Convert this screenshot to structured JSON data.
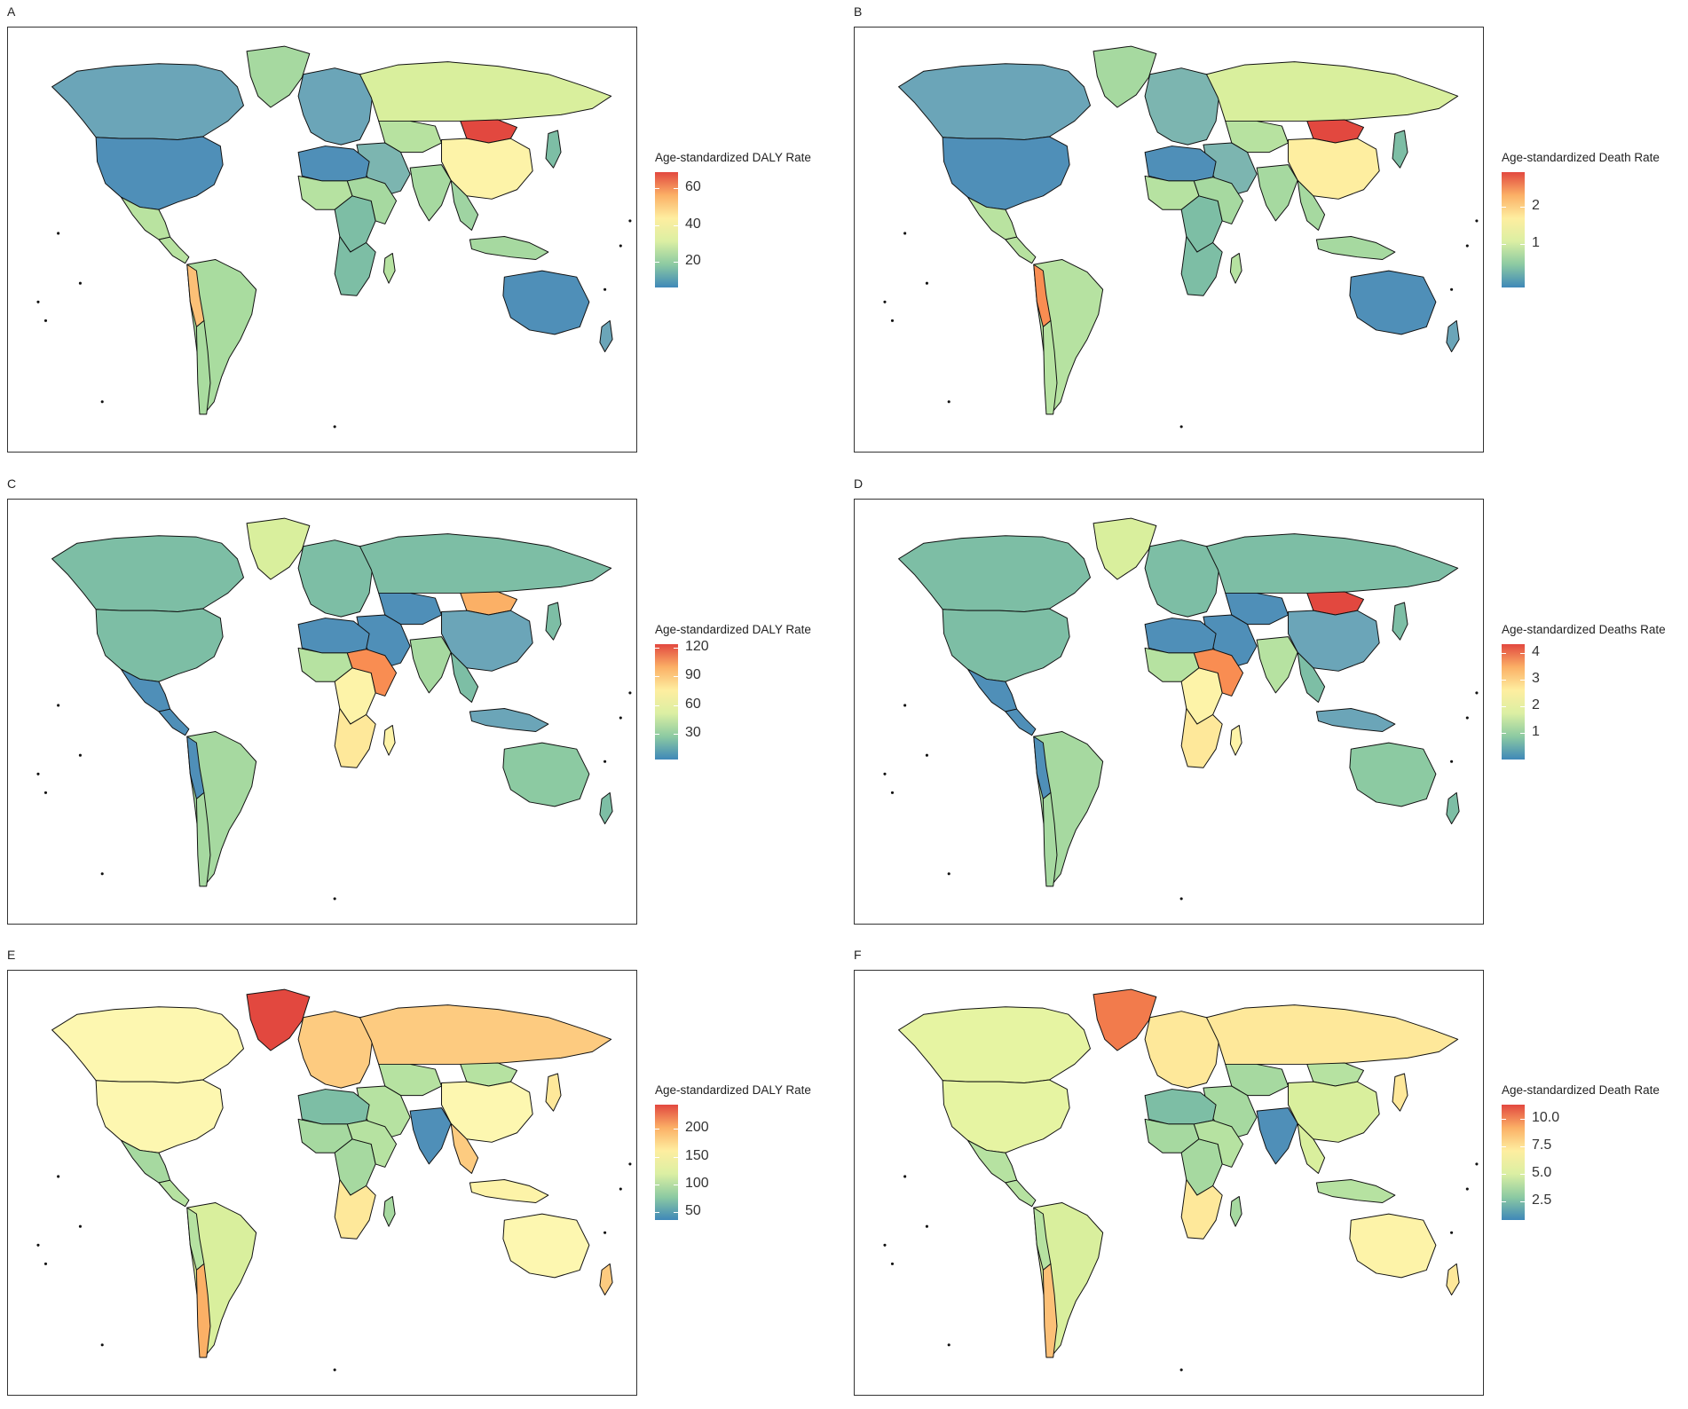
{
  "colors": {
    "scale": [
      "#3f88b8",
      "#8ccaa2",
      "#dbefa3",
      "#feeea0",
      "#fbb066",
      "#e2483f"
    ]
  },
  "panels": [
    {
      "label": "A",
      "legend_title": "Age-standardized DALY Rate",
      "ticks": [
        "60",
        "40",
        "20"
      ],
      "tick_fracs": [
        0.14,
        0.46,
        0.78
      ],
      "palette": {
        "northamerica": "#4f8fb8",
        "canada": "#6ba5b8",
        "greenland": "#a6d9a0",
        "mexico": "#b9e3a0",
        "centralam": "#b7e2a0",
        "southamerica": "#a9dc9f",
        "andes": "#fcc077",
        "chile": "#a9dc9f",
        "russia": "#d9ef9d",
        "mongolia": "#e2483f",
        "china": "#fdf3a8",
        "india": "#a6d9a0",
        "europe": "#6ba5b8",
        "middleeast": "#7cb5b0",
        "northafrica": "#4f8fb8",
        "westafrica": "#b6e2a1",
        "centralafrica": "#7dbea5",
        "eastafrica": "#a6d9a0",
        "southafrica": "#7dbea5",
        "madagascar": "#b6e2a1",
        "seasia": "#9fd4a2",
        "indonesia": "#a6d9a0",
        "australia": "#4f8fb8",
        "nz": "#6ba5b8",
        "japan": "#7dbea5",
        "centralasia": "#b7e2a0"
      }
    },
    {
      "label": "B",
      "legend_title": "Age-standardized Death Rate",
      "ticks": [
        "2",
        "1"
      ],
      "tick_fracs": [
        0.3,
        0.62
      ],
      "palette": {
        "northamerica": "#4f8fb8",
        "canada": "#6ba5b8",
        "greenland": "#a6d9a0",
        "mexico": "#b9e3a0",
        "centralam": "#b7e2a0",
        "southamerica": "#b6e2a1",
        "andes": "#f98d52",
        "chile": "#b6e2a1",
        "russia": "#d9ef9d",
        "mongolia": "#e2483f",
        "china": "#feeea0",
        "india": "#a6d9a0",
        "europe": "#7cb5b0",
        "middleeast": "#7cb5b0",
        "northafrica": "#4f8fb8",
        "westafrica": "#b6e2a1",
        "centralafrica": "#7dbea5",
        "eastafrica": "#a6d9a0",
        "southafrica": "#7dbea5",
        "madagascar": "#b6e2a1",
        "seasia": "#a6d9a0",
        "indonesia": "#a6d9a0",
        "australia": "#4f8fb8",
        "nz": "#6ba5b8",
        "japan": "#7dbea5",
        "centralasia": "#b7e2a0"
      }
    },
    {
      "label": "C",
      "legend_title": "Age-standardized DALY Rate",
      "ticks": [
        "120",
        "90",
        "60",
        "30"
      ],
      "tick_fracs": [
        0.03,
        0.28,
        0.53,
        0.78
      ],
      "palette": {
        "northamerica": "#7dbea5",
        "canada": "#7dbea5",
        "greenland": "#d9ef9d",
        "mexico": "#4f8fb8",
        "centralam": "#4f8fb8",
        "southamerica": "#a6d9a0",
        "andes": "#4f8fb8",
        "chile": "#a6d9a0",
        "russia": "#7dbea5",
        "mongolia": "#fbb066",
        "china": "#6ba5b8",
        "india": "#a6d9a0",
        "europe": "#7dbea5",
        "middleeast": "#4f8fb8",
        "northafrica": "#4f8fb8",
        "westafrica": "#b6e2a1",
        "centralafrica": "#fdf3a8",
        "eastafrica": "#f98d52",
        "southafrica": "#fee89a",
        "madagascar": "#fdf3a8",
        "seasia": "#7dbea5",
        "indonesia": "#6ba5b8",
        "australia": "#8ccaa2",
        "nz": "#7dbea5",
        "japan": "#7dbea5",
        "centralasia": "#4f8fb8"
      }
    },
    {
      "label": "D",
      "legend_title": "Age-standardized Deaths Rate",
      "ticks": [
        "4",
        "3",
        "2",
        "1"
      ],
      "tick_fracs": [
        0.08,
        0.31,
        0.54,
        0.77
      ],
      "palette": {
        "northamerica": "#7dbea5",
        "canada": "#7dbea5",
        "greenland": "#d9ef9d",
        "mexico": "#4f8fb8",
        "centralam": "#4f8fb8",
        "southamerica": "#a6d9a0",
        "andes": "#4f8fb8",
        "chile": "#a6d9a0",
        "russia": "#7dbea5",
        "mongolia": "#e2483f",
        "china": "#6ba5b8",
        "india": "#b6e2a1",
        "europe": "#7dbea5",
        "middleeast": "#4f8fb8",
        "northafrica": "#4f8fb8",
        "westafrica": "#b6e2a1",
        "centralafrica": "#fdf3a8",
        "eastafrica": "#f98d52",
        "southafrica": "#fee89a",
        "madagascar": "#fdf3a8",
        "seasia": "#7dbea5",
        "indonesia": "#6ba5b8",
        "australia": "#8ccaa2",
        "nz": "#7dbea5",
        "japan": "#7dbea5",
        "centralasia": "#4f8fb8"
      }
    },
    {
      "label": "E",
      "legend_title": "Age-standardized DALY Rate",
      "ticks": [
        "200",
        "150",
        "100",
        "50"
      ],
      "tick_fracs": [
        0.21,
        0.45,
        0.69,
        0.93
      ],
      "palette": {
        "northamerica": "#fdf7b0",
        "canada": "#fdf7b0",
        "greenland": "#e2483f",
        "mexico": "#a6d9a0",
        "centralam": "#b6e2a1",
        "southamerica": "#d9ef9d",
        "andes": "#b6e2a1",
        "chile": "#fbb066",
        "russia": "#fdcb80",
        "mongolia": "#b6e2a1",
        "china": "#fdf7b0",
        "india": "#4f8fb8",
        "europe": "#fdcb80",
        "middleeast": "#b6e2a1",
        "northafrica": "#7dbea5",
        "westafrica": "#a6d9a0",
        "centralafrica": "#a6d9a0",
        "eastafrica": "#b6e2a1",
        "southafrica": "#fee89a",
        "madagascar": "#a6d9a0",
        "seasia": "#fdcb80",
        "indonesia": "#fdf3a8",
        "australia": "#fdf7b0",
        "nz": "#fdcb80",
        "japan": "#fee89a",
        "centralasia": "#b6e2a1"
      }
    },
    {
      "label": "F",
      "legend_title": "Age-standardized Death Rate",
      "ticks": [
        "10.0",
        "7.5",
        "5.0",
        "2.5"
      ],
      "tick_fracs": [
        0.12,
        0.36,
        0.6,
        0.84
      ],
      "palette": {
        "northamerica": "#e6f4a2",
        "canada": "#e6f4a2",
        "greenland": "#f27b4c",
        "mexico": "#b6e2a1",
        "centralam": "#b6e2a1",
        "southamerica": "#d9ef9d",
        "andes": "#b6e2a1",
        "chile": "#fcc077",
        "russia": "#fee89a",
        "mongolia": "#b6e2a1",
        "china": "#d9ef9d",
        "india": "#4f8fb8",
        "europe": "#fee89a",
        "middleeast": "#a6d9a0",
        "northafrica": "#7dbea5",
        "westafrica": "#a6d9a0",
        "centralafrica": "#a6d9a0",
        "eastafrica": "#b6e2a1",
        "southafrica": "#fee89a",
        "madagascar": "#a6d9a0",
        "seasia": "#d9ef9d",
        "indonesia": "#b6e2a1",
        "australia": "#fdf3a8",
        "nz": "#fee89a",
        "japan": "#fee89a",
        "centralasia": "#a6d9a0"
      }
    }
  ]
}
